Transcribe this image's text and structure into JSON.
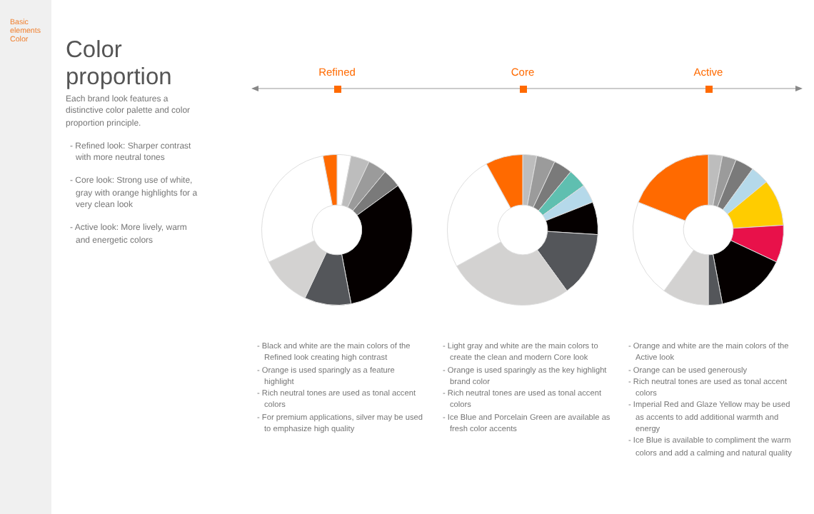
{
  "chart_data": [
    {
      "type": "other",
      "title": "Color proportion",
      "annotations": [
        "Basic elements Color",
        "Each brand look features a distinctive color palette and color proportion principle.",
        "- Refined look: Sharper contrast with more neutral tones",
        "- Core look: Strong use of white, gray with orange highlights for a very clean look",
        "- Active look: More lively, warm and energetic colors"
      ]
    },
    {
      "type": "donut",
      "title": "Refined",
      "categories": [
        null,
        null,
        null,
        null,
        null,
        null,
        null,
        null,
        null
      ],
      "values": [
        3,
        4,
        4,
        4,
        32,
        10,
        11,
        29,
        3
      ],
      "colors": [
        "#ffffff",
        "#bdbdbd",
        "#9b9b9b",
        "#7a7a7a",
        "#050000",
        "#54565a",
        "#d3d2d1",
        "#ffffff",
        "#ff6a00"
      ],
      "annotations": [
        "- Black and white are the main colors of the Refined look creating high contrast",
        "- Orange is used sparingly as a feature highlight",
        "- Rich neutral tones are used as tonal accent colors",
        "- For premium applications, silver may be used to emphasize high quality"
      ],
      "legend": false
    },
    {
      "type": "donut",
      "title": "Core",
      "categories": [
        null,
        null,
        null,
        null,
        null,
        null,
        null,
        null,
        null,
        null
      ],
      "values": [
        3,
        4,
        4,
        4,
        4,
        7,
        14,
        27,
        25,
        8
      ],
      "colors": [
        "#bdbdbd",
        "#9b9b9b",
        "#7a7a7a",
        "#5fbfb0",
        "#b5d9ea",
        "#050000",
        "#54565a",
        "#d3d2d1",
        "#ffffff",
        "#ff6a00"
      ],
      "annotations": [
        "- Light gray and white are the main colors to create the clean and modern Core look",
        "- Orange is used sparingly as the key highlight brand color",
        "- Rich neutral tones are used as tonal accent colors",
        "- Ice Blue and Porcelain Green are available as fresh color accents"
      ],
      "legend": false
    },
    {
      "type": "donut",
      "title": "Active",
      "categories": [
        null,
        null,
        null,
        null,
        null,
        null,
        null,
        null,
        null,
        null,
        null
      ],
      "values": [
        3,
        3,
        4,
        4,
        10,
        8,
        15,
        3,
        10,
        21,
        19
      ],
      "colors": [
        "#bdbdbd",
        "#9b9b9b",
        "#7a7a7a",
        "#b5d9ea",
        "#ffcc00",
        "#e8114a",
        "#050000",
        "#54565a",
        "#d3d2d1",
        "#ffffff",
        "#ff6a00"
      ],
      "annotations": [
        "- Orange and white are the main colors of the Active look",
        "- Orange can be used generously",
        "- Rich neutral tones are used as tonal accent colors",
        "- Imperial Red and Glaze Yellow may be used as accents to add additional warmth and energy",
        "- Ice Blue is available to compliment the warm colors and add a calming and natural quality"
      ],
      "legend": false
    }
  ]
}
